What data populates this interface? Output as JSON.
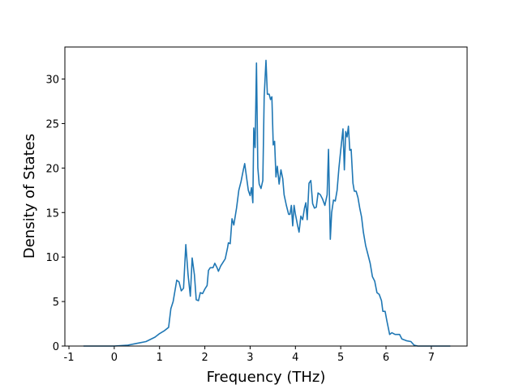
{
  "chart_data": {
    "type": "line",
    "x_label": "Frequency (THz)",
    "y_label": "Density of States",
    "x": [
      -0.68,
      0,
      0.3,
      0.5,
      0.7,
      0.9,
      1.0,
      1.1,
      1.2,
      1.25,
      1.3,
      1.38,
      1.43,
      1.48,
      1.53,
      1.58,
      1.63,
      1.68,
      1.72,
      1.77,
      1.81,
      1.86,
      1.9,
      1.95,
      2.0,
      2.05,
      2.08,
      2.12,
      2.18,
      2.22,
      2.27,
      2.3,
      2.35,
      2.4,
      2.45,
      2.5,
      2.52,
      2.56,
      2.6,
      2.64,
      2.7,
      2.75,
      2.8,
      2.85,
      2.88,
      2.92,
      2.96,
      3.0,
      3.03,
      3.06,
      3.08,
      3.11,
      3.14,
      3.17,
      3.2,
      3.24,
      3.28,
      3.31,
      3.35,
      3.38,
      3.42,
      3.45,
      3.48,
      3.51,
      3.54,
      3.57,
      3.6,
      3.64,
      3.68,
      3.72,
      3.75,
      3.8,
      3.85,
      3.88,
      3.91,
      3.94,
      3.97,
      4.0,
      4.05,
      4.08,
      4.12,
      4.16,
      4.2,
      4.23,
      4.26,
      4.3,
      4.34,
      4.38,
      4.42,
      4.46,
      4.5,
      4.55,
      4.6,
      4.65,
      4.7,
      4.73,
      4.77,
      4.8,
      4.84,
      4.88,
      4.92,
      4.96,
      5.0,
      5.05,
      5.08,
      5.11,
      5.14,
      5.17,
      5.2,
      5.23,
      5.27,
      5.3,
      5.34,
      5.38,
      5.42,
      5.46,
      5.5,
      5.55,
      5.6,
      5.65,
      5.7,
      5.75,
      5.8,
      5.85,
      5.9,
      5.93,
      5.98,
      6.02,
      6.08,
      6.13,
      6.2,
      6.3,
      6.35,
      6.45,
      6.55,
      6.62,
      6.7,
      7.42
    ],
    "series": [
      {
        "color": "#1f77b4",
        "values": [
          0,
          0,
          0.1,
          0.3,
          0.5,
          1.0,
          1.4,
          1.7,
          2.1,
          4.2,
          5.0,
          7.4,
          7.2,
          6.2,
          6.5,
          11.4,
          8.0,
          5.6,
          9.9,
          8.0,
          5.2,
          5.1,
          6.0,
          5.9,
          6.4,
          6.8,
          8.5,
          8.8,
          8.8,
          9.3,
          8.8,
          8.4,
          9.0,
          9.4,
          9.8,
          11.0,
          11.6,
          11.5,
          14.3,
          13.6,
          15.5,
          17.5,
          18.5,
          19.8,
          20.5,
          19.0,
          17.5,
          16.9,
          17.8,
          16.1,
          24.5,
          22.3,
          31.8,
          20.0,
          18.2,
          17.7,
          18.6,
          28.0,
          32.1,
          28.3,
          28.3,
          27.7,
          28.0,
          22.6,
          23.0,
          19.0,
          20.2,
          18.2,
          19.8,
          18.8,
          17.0,
          15.8,
          14.8,
          14.8,
          15.8,
          13.5,
          15.8,
          14.8,
          13.5,
          12.8,
          14.6,
          14.2,
          15.5,
          16.1,
          14.2,
          18.3,
          18.6,
          16.0,
          15.5,
          15.6,
          17.2,
          17.0,
          16.5,
          15.8,
          17.0,
          22.1,
          12.0,
          15.0,
          16.4,
          16.3,
          17.5,
          20.0,
          22.0,
          24.4,
          19.8,
          24.1,
          23.5,
          24.7,
          22.0,
          22.1,
          18.3,
          17.4,
          17.4,
          16.7,
          15.5,
          14.5,
          12.8,
          11.3,
          10.3,
          9.3,
          7.8,
          7.3,
          6.0,
          5.8,
          5.1,
          3.9,
          3.9,
          2.8,
          1.3,
          1.5,
          1.3,
          1.3,
          0.8,
          0.6,
          0.5,
          0.1,
          0,
          0
        ]
      }
    ],
    "xlim": [
      -1.09,
      7.79
    ],
    "ylim": [
      0,
      33.6
    ],
    "xticks": [
      -1,
      0,
      1,
      2,
      3,
      4,
      5,
      6,
      7
    ],
    "yticks": [
      0,
      5,
      10,
      15,
      20,
      25,
      30
    ]
  }
}
